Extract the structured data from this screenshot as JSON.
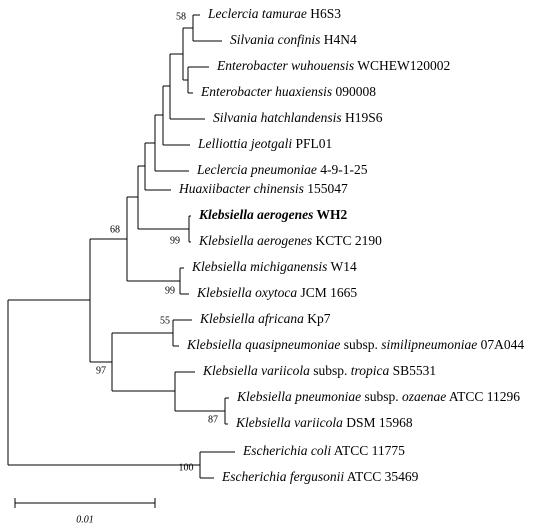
{
  "leaves": [
    {
      "species": "Leclercia tamurae",
      "strain": "H6S3"
    },
    {
      "species": "Silvania confinis",
      "strain": "H4N4"
    },
    {
      "species": "Enterobacter wuhouensis",
      "strain": "WCHEW120002"
    },
    {
      "species": "Enterobacter huaxiensis",
      "strain": "090008"
    },
    {
      "species": "Silvania hatchlandensis",
      "strain": "H19S6"
    },
    {
      "species": "Lelliottia jeotgali",
      "strain": "PFL01"
    },
    {
      "species": "Leclercia pneumoniae",
      "strain": "4-9-1-25"
    },
    {
      "species": "Huaxiibacter chinensis",
      "strain": "155047"
    },
    {
      "species": "Klebsiella aerogenes",
      "strain": "WH2"
    },
    {
      "species": "Klebsiella aerogenes",
      "strain": "KCTC 2190"
    },
    {
      "species": "Klebsiella michiganensis",
      "strain": "W14"
    },
    {
      "species": "Klebsiella oxytoca",
      "strain": "JCM 1665"
    },
    {
      "species": "Klebsiella africana",
      "strain": "Kp7"
    },
    {
      "species": "Klebsiella quasipneumoniae",
      "rank": "subsp.",
      "subspecies": "similipneumoniae",
      "strain": "07A044"
    },
    {
      "species": "Klebsiella variicola",
      "rank": "subsp.",
      "subspecies": "tropica",
      "strain": "SB5531"
    },
    {
      "species": "Klebsiella pneumoniae",
      "rank": "subsp.",
      "subspecies": "ozaenae",
      "strain": "ATCC 11296"
    },
    {
      "species": "Klebsiella variicola",
      "strain": "DSM 15968"
    },
    {
      "species": "Escherichia coli",
      "strain": "ATCC 11775"
    },
    {
      "species": "Escherichia fergusonii",
      "strain": "ATCC 35469"
    }
  ],
  "bootstrap": [
    58,
    68,
    99,
    99,
    55,
    97,
    87,
    100
  ],
  "scale": {
    "label": "0.01"
  }
}
